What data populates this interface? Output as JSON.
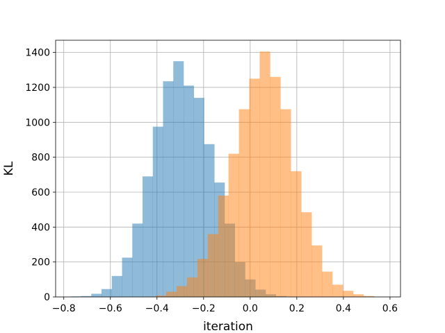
{
  "chart_data": {
    "type": "bar",
    "title": "",
    "xlabel": "iteration",
    "ylabel": "KL",
    "xlim": [
      -0.835,
      0.645
    ],
    "ylim": [
      0,
      1470
    ],
    "xticks": [
      -0.8,
      -0.6,
      -0.4,
      -0.2,
      0.0,
      0.2,
      0.4,
      0.6
    ],
    "xtick_labels": [
      "−0.8",
      "−0.6",
      "−0.4",
      "−0.2",
      "0.0",
      "0.2",
      "0.4",
      "0.6"
    ],
    "yticks": [
      0,
      200,
      400,
      600,
      800,
      1000,
      1200,
      1400
    ],
    "ytick_labels": [
      "0",
      "200",
      "400",
      "600",
      "800",
      "1000",
      "1200",
      "1400"
    ],
    "grid": true,
    "legend": "none",
    "series": [
      {
        "color": "#1f77b4",
        "alpha": 0.5,
        "bin_start": -0.77,
        "bin_width": 0.044,
        "counts": [
          3,
          5,
          18,
          45,
          120,
          225,
          420,
          690,
          975,
          1235,
          1350,
          1210,
          1140,
          875,
          655,
          420,
          200,
          100,
          42,
          15,
          5,
          2
        ]
      },
      {
        "color": "#ff7f0e",
        "alpha": 0.5,
        "bin_start": -0.45,
        "bin_width": 0.0446,
        "counts": [
          2,
          8,
          30,
          62,
          112,
          218,
          360,
          580,
          820,
          1075,
          1250,
          1405,
          1260,
          1075,
          720,
          485,
          295,
          145,
          70,
          35,
          15,
          5
        ]
      }
    ]
  }
}
